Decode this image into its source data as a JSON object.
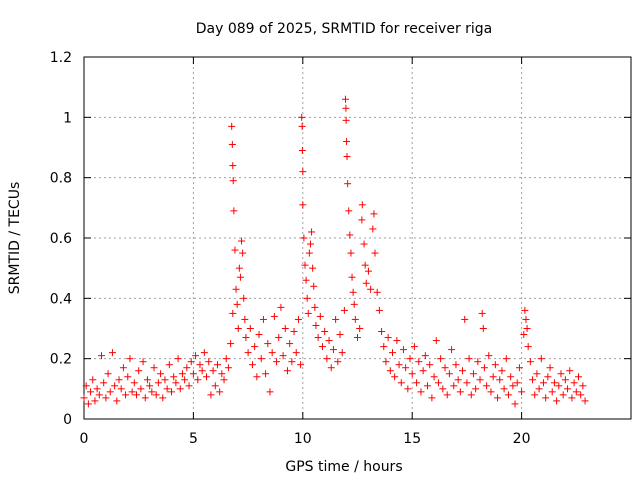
{
  "chart_data": {
    "type": "scatter",
    "title": "Day 089 of 2025, SRMTID for receiver riga",
    "xlabel": "GPS time / hours",
    "ylabel": "SRMTID / TECUs",
    "xlim": [
      0,
      25
    ],
    "ylim": [
      0,
      1.2
    ],
    "x_ticks": [
      0,
      5,
      10,
      15,
      20
    ],
    "x_tick_labels": [
      "0",
      "5",
      "10",
      "15",
      "20"
    ],
    "y_ticks": [
      0,
      0.2,
      0.4,
      0.6,
      0.8,
      1.0,
      1.2
    ],
    "y_tick_labels": [
      "0",
      "0.2",
      "0.4",
      "0.6",
      "0.8",
      "1",
      "1.2"
    ],
    "grid": true,
    "marker": "+",
    "color": "#ff0000",
    "series": [
      {
        "name": "SRMTID",
        "points": [
          [
            0.0,
            0.07
          ],
          [
            0.1,
            0.11
          ],
          [
            0.2,
            0.05
          ],
          [
            0.3,
            0.09
          ],
          [
            0.4,
            0.13
          ],
          [
            0.5,
            0.06
          ],
          [
            0.6,
            0.1
          ],
          [
            0.7,
            0.08
          ],
          [
            0.8,
            0.21
          ],
          [
            0.9,
            0.12
          ],
          [
            1.0,
            0.07
          ],
          [
            1.1,
            0.15
          ],
          [
            1.2,
            0.09
          ],
          [
            1.3,
            0.22
          ],
          [
            1.4,
            0.11
          ],
          [
            1.5,
            0.06
          ],
          [
            1.6,
            0.13
          ],
          [
            1.7,
            0.1
          ],
          [
            1.8,
            0.17
          ],
          [
            1.9,
            0.08
          ],
          [
            2.0,
            0.14
          ],
          [
            2.1,
            0.2
          ],
          [
            2.2,
            0.09
          ],
          [
            2.3,
            0.12
          ],
          [
            2.4,
            0.08
          ],
          [
            2.5,
            0.16
          ],
          [
            2.6,
            0.1
          ],
          [
            2.7,
            0.19
          ],
          [
            2.8,
            0.07
          ],
          [
            2.9,
            0.13
          ],
          [
            3.0,
            0.11
          ],
          [
            3.1,
            0.09
          ],
          [
            3.2,
            0.17
          ],
          [
            3.3,
            0.08
          ],
          [
            3.4,
            0.12
          ],
          [
            3.5,
            0.15
          ],
          [
            3.6,
            0.07
          ],
          [
            3.7,
            0.13
          ],
          [
            3.8,
            0.1
          ],
          [
            3.9,
            0.18
          ],
          [
            4.0,
            0.09
          ],
          [
            4.1,
            0.14
          ],
          [
            4.2,
            0.12
          ],
          [
            4.3,
            0.2
          ],
          [
            4.4,
            0.1
          ],
          [
            4.5,
            0.15
          ],
          [
            4.6,
            0.13
          ],
          [
            4.7,
            0.17
          ],
          [
            4.8,
            0.11
          ],
          [
            4.9,
            0.19
          ],
          [
            5.0,
            0.15
          ],
          [
            5.1,
            0.21
          ],
          [
            5.2,
            0.13
          ],
          [
            5.3,
            0.18
          ],
          [
            5.4,
            0.16
          ],
          [
            5.5,
            0.22
          ],
          [
            5.6,
            0.14
          ],
          [
            5.7,
            0.19
          ],
          [
            5.8,
            0.08
          ],
          [
            5.9,
            0.16
          ],
          [
            6.0,
            0.11
          ],
          [
            6.1,
            0.18
          ],
          [
            6.2,
            0.09
          ],
          [
            6.3,
            0.15
          ],
          [
            6.4,
            0.13
          ],
          [
            6.5,
            0.2
          ],
          [
            6.6,
            0.17
          ],
          [
            6.7,
            0.25
          ],
          [
            6.8,
            0.35
          ],
          [
            6.75,
            0.97
          ],
          [
            6.78,
            0.91
          ],
          [
            6.8,
            0.84
          ],
          [
            6.82,
            0.79
          ],
          [
            6.85,
            0.69
          ],
          [
            6.9,
            0.56
          ],
          [
            6.95,
            0.43
          ],
          [
            7.0,
            0.38
          ],
          [
            7.05,
            0.3
          ],
          [
            7.1,
            0.5
          ],
          [
            7.15,
            0.47
          ],
          [
            7.2,
            0.59
          ],
          [
            7.25,
            0.55
          ],
          [
            7.3,
            0.4
          ],
          [
            7.35,
            0.33
          ],
          [
            7.4,
            0.27
          ],
          [
            7.5,
            0.22
          ],
          [
            7.6,
            0.3
          ],
          [
            7.7,
            0.18
          ],
          [
            7.8,
            0.24
          ],
          [
            7.9,
            0.14
          ],
          [
            8.0,
            0.28
          ],
          [
            8.1,
            0.2
          ],
          [
            8.2,
            0.33
          ],
          [
            8.3,
            0.15
          ],
          [
            8.4,
            0.25
          ],
          [
            8.5,
            0.09
          ],
          [
            8.6,
            0.22
          ],
          [
            8.7,
            0.34
          ],
          [
            8.8,
            0.19
          ],
          [
            8.9,
            0.27
          ],
          [
            9.0,
            0.37
          ],
          [
            9.1,
            0.21
          ],
          [
            9.2,
            0.3
          ],
          [
            9.3,
            0.16
          ],
          [
            9.4,
            0.25
          ],
          [
            9.5,
            0.19
          ],
          [
            9.6,
            0.29
          ],
          [
            9.7,
            0.22
          ],
          [
            9.8,
            0.33
          ],
          [
            9.9,
            0.18
          ],
          [
            9.95,
            1.0
          ],
          [
            9.97,
            0.97
          ],
          [
            9.98,
            0.89
          ],
          [
            10.0,
            0.82
          ],
          [
            10.0,
            0.71
          ],
          [
            10.05,
            0.6
          ],
          [
            10.1,
            0.51
          ],
          [
            10.15,
            0.46
          ],
          [
            10.2,
            0.4
          ],
          [
            10.25,
            0.35
          ],
          [
            10.3,
            0.55
          ],
          [
            10.35,
            0.58
          ],
          [
            10.4,
            0.62
          ],
          [
            10.45,
            0.5
          ],
          [
            10.5,
            0.44
          ],
          [
            10.55,
            0.37
          ],
          [
            10.6,
            0.31
          ],
          [
            10.7,
            0.27
          ],
          [
            10.8,
            0.34
          ],
          [
            10.9,
            0.24
          ],
          [
            11.0,
            0.29
          ],
          [
            11.1,
            0.2
          ],
          [
            11.2,
            0.26
          ],
          [
            11.3,
            0.17
          ],
          [
            11.4,
            0.23
          ],
          [
            11.5,
            0.33
          ],
          [
            11.6,
            0.19
          ],
          [
            11.7,
            0.28
          ],
          [
            11.8,
            0.22
          ],
          [
            11.9,
            0.36
          ],
          [
            11.95,
            1.06
          ],
          [
            11.97,
            1.03
          ],
          [
            11.98,
            0.99
          ],
          [
            12.0,
            0.92
          ],
          [
            12.02,
            0.87
          ],
          [
            12.05,
            0.78
          ],
          [
            12.1,
            0.69
          ],
          [
            12.15,
            0.61
          ],
          [
            12.2,
            0.55
          ],
          [
            12.25,
            0.47
          ],
          [
            12.3,
            0.42
          ],
          [
            12.35,
            0.38
          ],
          [
            12.4,
            0.33
          ],
          [
            12.5,
            0.27
          ],
          [
            12.6,
            0.3
          ],
          [
            12.7,
            0.66
          ],
          [
            12.72,
            0.71
          ],
          [
            12.8,
            0.58
          ],
          [
            12.85,
            0.51
          ],
          [
            12.9,
            0.45
          ],
          [
            13.0,
            0.49
          ],
          [
            13.1,
            0.43
          ],
          [
            13.2,
            0.63
          ],
          [
            13.25,
            0.68
          ],
          [
            13.3,
            0.55
          ],
          [
            13.4,
            0.42
          ],
          [
            13.5,
            0.36
          ],
          [
            13.6,
            0.29
          ],
          [
            13.7,
            0.24
          ],
          [
            13.8,
            0.19
          ],
          [
            13.9,
            0.27
          ],
          [
            14.0,
            0.16
          ],
          [
            14.1,
            0.22
          ],
          [
            14.2,
            0.14
          ],
          [
            14.3,
            0.26
          ],
          [
            14.4,
            0.18
          ],
          [
            14.5,
            0.12
          ],
          [
            14.6,
            0.23
          ],
          [
            14.7,
            0.17
          ],
          [
            14.8,
            0.1
          ],
          [
            14.9,
            0.2
          ],
          [
            15.0,
            0.15
          ],
          [
            15.1,
            0.24
          ],
          [
            15.2,
            0.12
          ],
          [
            15.3,
            0.19
          ],
          [
            15.4,
            0.09
          ],
          [
            15.5,
            0.16
          ],
          [
            15.6,
            0.21
          ],
          [
            15.7,
            0.11
          ],
          [
            15.8,
            0.18
          ],
          [
            15.9,
            0.07
          ],
          [
            16.0,
            0.14
          ],
          [
            16.1,
            0.26
          ],
          [
            16.2,
            0.12
          ],
          [
            16.3,
            0.2
          ],
          [
            16.4,
            0.1
          ],
          [
            16.5,
            0.17
          ],
          [
            16.6,
            0.08
          ],
          [
            16.7,
            0.15
          ],
          [
            16.8,
            0.23
          ],
          [
            16.9,
            0.11
          ],
          [
            17.0,
            0.18
          ],
          [
            17.1,
            0.13
          ],
          [
            17.2,
            0.09
          ],
          [
            17.3,
            0.16
          ],
          [
            17.4,
            0.33
          ],
          [
            17.5,
            0.12
          ],
          [
            17.6,
            0.2
          ],
          [
            17.7,
            0.08
          ],
          [
            17.8,
            0.15
          ],
          [
            17.9,
            0.1
          ],
          [
            18.0,
            0.19
          ],
          [
            18.1,
            0.13
          ],
          [
            18.2,
            0.35
          ],
          [
            18.25,
            0.3
          ],
          [
            18.3,
            0.17
          ],
          [
            18.4,
            0.11
          ],
          [
            18.5,
            0.21
          ],
          [
            18.6,
            0.09
          ],
          [
            18.7,
            0.14
          ],
          [
            18.8,
            0.18
          ],
          [
            18.9,
            0.07
          ],
          [
            19.0,
            0.13
          ],
          [
            19.1,
            0.16
          ],
          [
            19.2,
            0.1
          ],
          [
            19.3,
            0.2
          ],
          [
            19.4,
            0.08
          ],
          [
            19.5,
            0.14
          ],
          [
            19.6,
            0.11
          ],
          [
            19.7,
            0.05
          ],
          [
            19.8,
            0.12
          ],
          [
            19.9,
            0.17
          ],
          [
            20.0,
            0.09
          ],
          [
            20.1,
            0.28
          ],
          [
            20.15,
            0.36
          ],
          [
            20.2,
            0.33
          ],
          [
            20.25,
            0.3
          ],
          [
            20.3,
            0.24
          ],
          [
            20.4,
            0.19
          ],
          [
            20.5,
            0.13
          ],
          [
            20.6,
            0.08
          ],
          [
            20.7,
            0.15
          ],
          [
            20.8,
            0.1
          ],
          [
            20.9,
            0.2
          ],
          [
            21.0,
            0.12
          ],
          [
            21.1,
            0.07
          ],
          [
            21.2,
            0.14
          ],
          [
            21.3,
            0.17
          ],
          [
            21.4,
            0.09
          ],
          [
            21.5,
            0.12
          ],
          [
            21.6,
            0.06
          ],
          [
            21.7,
            0.11
          ],
          [
            21.8,
            0.15
          ],
          [
            21.9,
            0.08
          ],
          [
            22.0,
            0.13
          ],
          [
            22.1,
            0.1
          ],
          [
            22.2,
            0.16
          ],
          [
            22.3,
            0.07
          ],
          [
            22.4,
            0.12
          ],
          [
            22.5,
            0.09
          ],
          [
            22.6,
            0.14
          ],
          [
            22.7,
            0.08
          ],
          [
            22.8,
            0.11
          ],
          [
            22.9,
            0.06
          ]
        ]
      }
    ]
  }
}
